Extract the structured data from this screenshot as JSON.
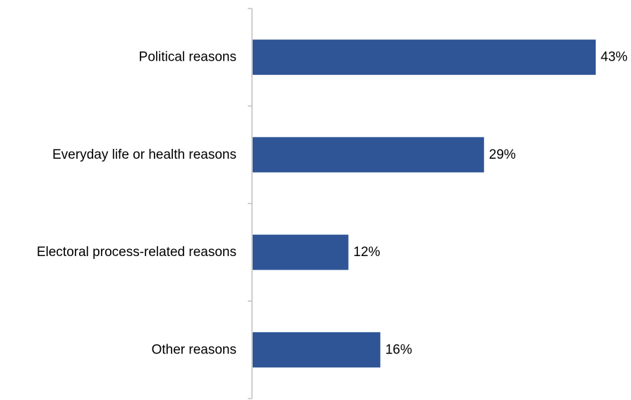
{
  "chart_data": {
    "type": "bar",
    "orientation": "horizontal",
    "categories": [
      "Political reasons",
      "Everyday life or health reasons",
      "Electoral process-related reasons",
      "Other reasons"
    ],
    "values": [
      43,
      29,
      12,
      16
    ],
    "value_labels": [
      "43%",
      "29%",
      "12%",
      "16%"
    ],
    "unit": "%",
    "title": "",
    "xlabel": "",
    "ylabel": "",
    "xlim": [
      0,
      43
    ],
    "grid": false,
    "legend": "none",
    "colors": {
      "bar": "#2f5597",
      "axis": "#bfbfbf",
      "text": "#000000"
    }
  }
}
